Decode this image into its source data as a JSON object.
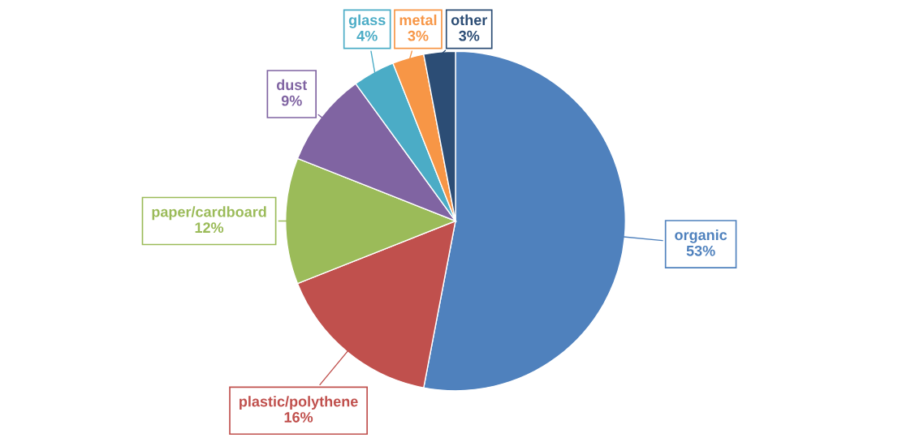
{
  "chart_data": {
    "type": "pie",
    "categories": [
      "organic",
      "plastic/polythene",
      "paper/cardboard",
      "dust",
      "glass",
      "metal",
      "other"
    ],
    "values": [
      53,
      16,
      12,
      9,
      4,
      3,
      3
    ],
    "value_labels": [
      "53%",
      "16%",
      "12%",
      "9%",
      "4%",
      "3%",
      "3%"
    ],
    "colors": [
      "#4f81bd",
      "#c0504d",
      "#9bbb59",
      "#8064a2",
      "#4bacc6",
      "#f79646",
      "#2c4d75"
    ],
    "legend": false
  }
}
